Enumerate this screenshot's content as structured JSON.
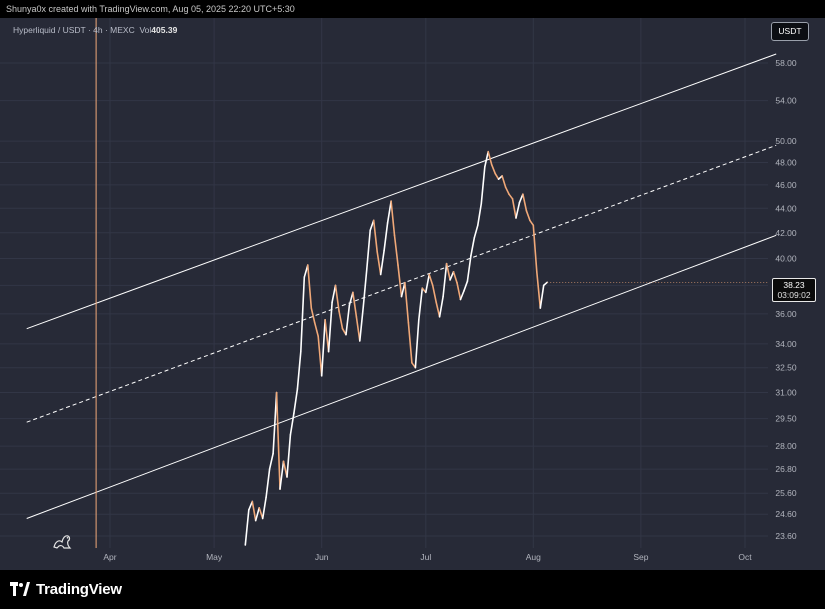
{
  "caption": "Shunya0x created with TradingView.com, Aug 05, 2025 22:20 UTC+5:30",
  "legend": {
    "symbol": "Hyperliquid / USDT · 4h · MEXC",
    "vol_label": "Vol",
    "vol_value": "405.39"
  },
  "currency_badge": "USDT",
  "last_price": {
    "value": "38.23",
    "countdown": "03:09:02"
  },
  "footer": {
    "brand": "TradingView"
  },
  "colors": {
    "background": "#272a37",
    "grid": "#323646",
    "axis_text": "#b2b5be",
    "channel": "#ffffff",
    "price_up": "#ffffff",
    "price_down": "#f0a878",
    "vertical_marker": "#f0a878"
  },
  "chart_data": {
    "type": "line",
    "title": "",
    "xlabel": "",
    "ylabel": "",
    "x_ticks": [
      "Apr",
      "May",
      "Jun",
      "Jul",
      "Aug",
      "Sep",
      "Oct"
    ],
    "y_ticks": [
      58.0,
      54.0,
      50.0,
      48.0,
      46.0,
      44.0,
      42.0,
      40.0,
      38.0,
      36.0,
      34.0,
      32.5,
      31.0,
      29.5,
      28.0,
      26.8,
      25.6,
      24.6,
      23.6
    ],
    "y_scale": "log",
    "ylim": [
      23.0,
      62.0
    ],
    "xlim": [
      "2025-03-08",
      "2025-10-10"
    ],
    "vertical_marker_date": "2025-03-28",
    "series": [
      {
        "x": [
          "2025-05-10",
          "2025-05-11",
          "2025-05-12",
          "2025-05-13",
          "2025-05-14",
          "2025-05-15",
          "2025-05-16",
          "2025-05-17",
          "2025-05-18",
          "2025-05-19",
          "2025-05-20",
          "2025-05-21",
          "2025-05-22",
          "2025-05-23",
          "2025-05-24",
          "2025-05-25",
          "2025-05-26",
          "2025-05-27",
          "2025-05-28",
          "2025-05-29",
          "2025-05-30",
          "2025-05-31",
          "2025-06-01",
          "2025-06-02",
          "2025-06-03",
          "2025-06-04",
          "2025-06-05",
          "2025-06-06",
          "2025-06-07",
          "2025-06-08",
          "2025-06-09",
          "2025-06-10",
          "2025-06-11",
          "2025-06-12",
          "2025-06-13",
          "2025-06-14",
          "2025-06-15",
          "2025-06-16",
          "2025-06-17",
          "2025-06-18",
          "2025-06-19",
          "2025-06-20",
          "2025-06-21",
          "2025-06-22",
          "2025-06-23",
          "2025-06-24",
          "2025-06-25",
          "2025-06-26",
          "2025-06-27",
          "2025-06-28",
          "2025-06-29",
          "2025-06-30",
          "2025-07-01",
          "2025-07-02",
          "2025-07-03",
          "2025-07-04",
          "2025-07-05",
          "2025-07-06",
          "2025-07-07",
          "2025-07-08",
          "2025-07-09",
          "2025-07-10",
          "2025-07-11",
          "2025-07-12",
          "2025-07-13",
          "2025-07-14",
          "2025-07-15",
          "2025-07-16",
          "2025-07-17",
          "2025-07-18",
          "2025-07-19",
          "2025-07-20",
          "2025-07-21",
          "2025-07-22",
          "2025-07-23",
          "2025-07-24",
          "2025-07-25",
          "2025-07-26",
          "2025-07-27",
          "2025-07-28",
          "2025-07-29",
          "2025-07-30",
          "2025-07-31",
          "2025-08-01",
          "2025-08-02",
          "2025-08-03",
          "2025-08-04",
          "2025-08-05"
        ],
        "values": [
          23.2,
          24.8,
          25.2,
          24.3,
          24.9,
          24.4,
          25.4,
          26.8,
          27.6,
          31.0,
          25.8,
          27.2,
          26.4,
          28.6,
          29.8,
          31.2,
          33.5,
          38.6,
          39.5,
          36.4,
          35.4,
          34.5,
          32.0,
          35.6,
          33.5,
          36.8,
          38.0,
          36.2,
          35.0,
          34.6,
          36.6,
          37.5,
          35.8,
          34.2,
          36.5,
          39.2,
          42.2,
          43.0,
          40.5,
          38.8,
          40.6,
          42.8,
          44.6,
          41.8,
          39.5,
          37.2,
          38.2,
          35.4,
          32.8,
          32.5,
          35.6,
          37.8,
          37.5,
          38.8,
          38.0,
          36.8,
          35.8,
          37.2,
          39.6,
          38.4,
          39.0,
          38.2,
          37.0,
          37.6,
          38.3,
          40.2,
          41.6,
          42.6,
          44.4,
          47.6,
          49.0,
          47.8,
          47.0,
          46.5,
          46.8,
          45.8,
          45.2,
          44.8,
          43.2,
          44.5,
          45.2,
          43.8,
          43.0,
          42.6,
          39.0,
          36.4,
          38.0,
          38.23
        ]
      }
    ],
    "channel_lines": [
      {
        "style": "solid",
        "x": [
          "2025-03-08",
          "2025-10-10"
        ],
        "y": [
          35.0,
          59.0
        ]
      },
      {
        "style": "dashed",
        "x": [
          "2025-03-08",
          "2025-10-10"
        ],
        "y": [
          29.3,
          49.6
        ]
      },
      {
        "style": "solid",
        "x": [
          "2025-03-08",
          "2025-10-10"
        ],
        "y": [
          24.4,
          41.8
        ]
      }
    ]
  }
}
